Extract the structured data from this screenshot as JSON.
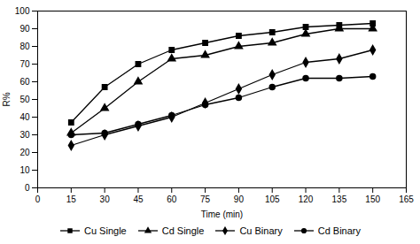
{
  "chart_data": {
    "type": "line",
    "x": [
      15,
      30,
      45,
      60,
      75,
      90,
      105,
      120,
      135,
      150
    ],
    "series": [
      {
        "name": "Cu Single",
        "color": "#000000",
        "marker": "square",
        "values": [
          37,
          57,
          70,
          78,
          82,
          86,
          88,
          91,
          92,
          93
        ]
      },
      {
        "name": "Cd Single",
        "color": "#000000",
        "marker": "triangle",
        "values": [
          31,
          45,
          60,
          73,
          75,
          80,
          82,
          87,
          90,
          90
        ]
      },
      {
        "name": "Cu Binary",
        "color": "#000000",
        "marker": "diamond",
        "values": [
          24,
          30,
          35,
          40,
          48,
          56,
          64,
          71,
          73,
          78
        ]
      },
      {
        "name": "Cd Binary",
        "color": "#000000",
        "marker": "circle",
        "values": [
          30,
          31,
          36,
          41,
          47,
          51,
          57,
          62,
          62,
          63
        ]
      }
    ],
    "xlabel": "Time (min)",
    "ylabel": "R%",
    "xlim": [
      0,
      165
    ],
    "ylim": [
      0,
      100
    ],
    "xticks": [
      0,
      15,
      30,
      45,
      60,
      75,
      90,
      105,
      120,
      135,
      150,
      165
    ],
    "yticks": [
      0,
      10,
      20,
      30,
      40,
      50,
      60,
      70,
      80,
      90,
      100
    ],
    "grid": false,
    "legend": "bottom"
  }
}
